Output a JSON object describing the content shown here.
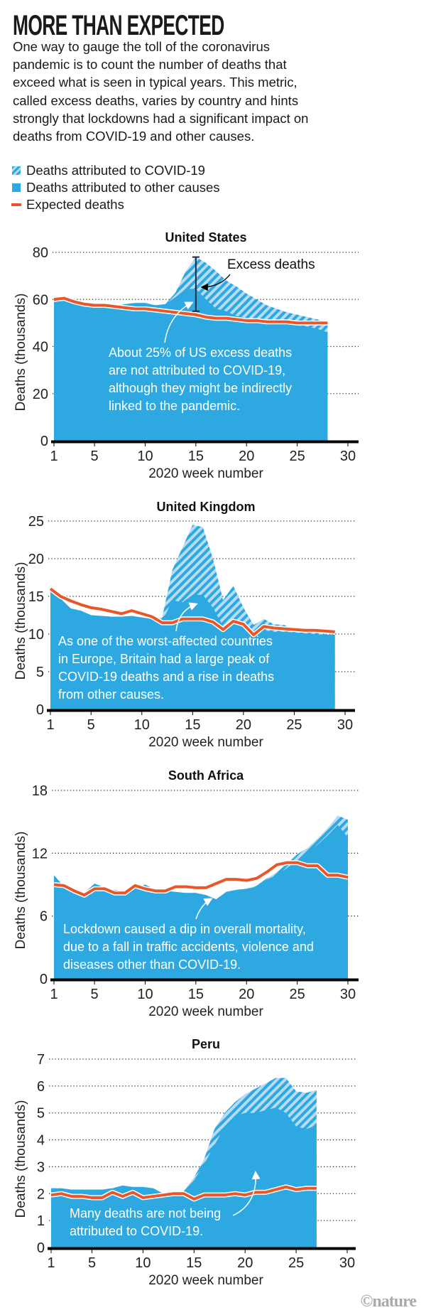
{
  "title": "MORE THAN EXPECTED",
  "intro_lines": [
    "One way to gauge the toll of the coronavirus",
    "pandemic is to count the number of deaths that",
    "exceed what is seen in typical years. This metric,",
    "called excess deaths, varies by country and hints",
    "strongly that lockdowns had a significant impact on",
    "deaths from COVID-19 and other causes."
  ],
  "legend": {
    "covid": "Deaths attributed to COVID-19",
    "other": "Deaths attributed to other causes",
    "expected": "Expected deaths"
  },
  "colors": {
    "other": "#2ea8e0",
    "covid_hatch": "#b5dcf2",
    "expected": "#e8572a"
  },
  "logo": "©nature",
  "chart_data": [
    {
      "type": "area",
      "title": "United States",
      "xlabel": "2020 week number",
      "ylabel": "Deaths (thousands)",
      "xlim": [
        1,
        30
      ],
      "xticks": [
        1,
        5,
        10,
        15,
        20,
        25,
        30
      ],
      "ylim": [
        0,
        80
      ],
      "yticks": [
        0,
        20,
        40,
        60,
        80
      ],
      "grid": true,
      "weeks": [
        1,
        2,
        3,
        4,
        5,
        6,
        7,
        8,
        9,
        10,
        11,
        12,
        13,
        14,
        15,
        16,
        17,
        18,
        19,
        20,
        21,
        22,
        23,
        24,
        25,
        26,
        27,
        28
      ],
      "total": [
        59,
        59.5,
        58,
        57,
        57,
        57,
        57,
        58,
        58.5,
        58.5,
        57.5,
        58,
        63,
        72,
        78,
        75.5,
        72,
        68,
        65.5,
        62.5,
        60,
        57.5,
        56,
        54.5,
        53.5,
        52.5,
        51.5,
        50
      ],
      "other_causes": [
        59,
        59.5,
        58,
        57,
        57,
        57,
        57,
        58,
        58.5,
        58.5,
        57.5,
        58,
        61,
        64.5,
        64.5,
        60,
        56,
        55,
        53,
        52,
        51,
        50.5,
        50,
        49.5,
        49,
        48.5,
        47.5,
        46
      ],
      "expected": [
        60,
        60.5,
        59,
        58,
        57.5,
        57.5,
        57,
        56.5,
        56,
        56,
        55.5,
        55,
        54.5,
        54,
        53.5,
        52.5,
        52,
        52,
        51.5,
        51,
        51,
        50.5,
        50.5,
        50.5,
        50,
        50,
        50,
        50
      ],
      "excess_bracket": {
        "week": 15,
        "from": 55,
        "to": 78,
        "label": "Excess deaths"
      },
      "annotation": [
        "About 25% of US excess deaths",
        "are not attributed to COVID-19,",
        "although they might be indirectly",
        "linked to the pandemic."
      ]
    },
    {
      "type": "area",
      "title": "United Kingdom",
      "xlabel": "2020 week number",
      "ylabel": "Deaths (thousands)",
      "xlim": [
        1,
        30
      ],
      "xticks": [
        1,
        5,
        10,
        15,
        20,
        25,
        30
      ],
      "ylim": [
        0,
        25
      ],
      "yticks": [
        0,
        5,
        10,
        15,
        20,
        25
      ],
      "grid": true,
      "weeks": [
        1,
        2,
        3,
        4,
        5,
        6,
        7,
        8,
        9,
        10,
        11,
        12,
        13,
        14,
        15,
        16,
        17,
        18,
        19,
        20,
        21,
        22,
        23,
        24,
        25,
        26,
        27,
        28,
        29
      ],
      "total": [
        15.7,
        14.7,
        13.4,
        13.1,
        12.5,
        12.4,
        12.3,
        12.3,
        12.4,
        12.2,
        12,
        12.2,
        18.5,
        21.5,
        24.5,
        24.2,
        20,
        14.5,
        16.4,
        13.5,
        11.2,
        12,
        11.3,
        11.2,
        10.6,
        10.3,
        10.2,
        10,
        9.9
      ],
      "other_causes": [
        15.7,
        14.7,
        13.4,
        13.1,
        12.5,
        12.4,
        12.3,
        12.3,
        12.4,
        12.2,
        12,
        11.6,
        14.5,
        14.2,
        15.2,
        15.2,
        13.5,
        11,
        12,
        11.3,
        9.6,
        10.5,
        10.3,
        10.3,
        10.2,
        10.1,
        10,
        9.9,
        9.9
      ],
      "expected": [
        16,
        15,
        14.4,
        13.9,
        13.5,
        13.3,
        13,
        12.7,
        13.1,
        12.7,
        12.3,
        11.5,
        11.5,
        12,
        12,
        12,
        11.6,
        10.6,
        11.7,
        11.3,
        9.9,
        11,
        10.8,
        10.7,
        10.6,
        10.5,
        10.5,
        10.4,
        10.3
      ],
      "annotation": [
        "As one of the worst-affected countries",
        "in Europe, Britain had a large peak of",
        "COVID-19 deaths and a rise in deaths",
        "from other causes."
      ]
    },
    {
      "type": "area",
      "title": "South Africa",
      "xlabel": "2020 week number",
      "ylabel": "Deaths (thousands)",
      "xlim": [
        1,
        30
      ],
      "xticks": [
        1,
        5,
        10,
        15,
        20,
        25,
        30
      ],
      "ylim": [
        0,
        18
      ],
      "yticks": [
        0,
        6,
        12,
        18
      ],
      "grid": true,
      "weeks": [
        1,
        2,
        3,
        4,
        5,
        6,
        7,
        8,
        9,
        10,
        11,
        12,
        13,
        14,
        15,
        16,
        17,
        18,
        19,
        20,
        21,
        22,
        23,
        24,
        25,
        26,
        27,
        28,
        29,
        30
      ],
      "total": [
        9.9,
        8.8,
        8.3,
        8.2,
        9.1,
        8.7,
        8.5,
        8.3,
        8.7,
        9,
        8.5,
        8.4,
        8.3,
        8.2,
        8.2,
        8,
        7.6,
        8.3,
        8.5,
        8.6,
        8.9,
        9.6,
        10.2,
        11,
        11.9,
        12.5,
        13.4,
        14.4,
        15.6,
        15.2
      ],
      "other_causes": [
        9.9,
        8.8,
        8.3,
        8.2,
        9.1,
        8.7,
        8.5,
        8.3,
        8.7,
        9,
        8.5,
        8.4,
        8.3,
        8.2,
        8.2,
        8,
        7.6,
        8.3,
        8.5,
        8.6,
        8.8,
        9.5,
        9.9,
        10.6,
        11.3,
        12,
        12.8,
        13.7,
        14.7,
        13.5
      ],
      "expected": [
        9,
        8.9,
        8.4,
        8,
        8.6,
        8.6,
        8.2,
        8.2,
        8.9,
        8.6,
        8.4,
        8.4,
        8.8,
        8.8,
        8.7,
        8.7,
        9.1,
        9.5,
        9.5,
        9.4,
        9.6,
        10.2,
        10.9,
        11.1,
        11.1,
        10.8,
        10.8,
        9.9,
        9.9,
        9.7
      ],
      "annotation": [
        "Lockdown caused a dip in overall mortality,",
        "due to a fall in traffic accidents, violence and",
        "diseases other than COVID-19."
      ]
    },
    {
      "type": "area",
      "title": "Peru",
      "xlabel": "2020 week number",
      "ylabel": "Deaths (thousands)",
      "xlim": [
        1,
        30
      ],
      "xticks": [
        1,
        5,
        10,
        15,
        20,
        25,
        30
      ],
      "ylim": [
        0,
        7
      ],
      "yticks": [
        0,
        1,
        2,
        3,
        4,
        5,
        6,
        7
      ],
      "grid": true,
      "weeks": [
        1,
        2,
        3,
        4,
        5,
        6,
        7,
        8,
        9,
        10,
        11,
        12,
        13,
        14,
        15,
        16,
        17,
        18,
        19,
        20,
        21,
        22,
        23,
        24,
        25,
        26,
        27
      ],
      "total": [
        2.2,
        2.2,
        2.15,
        2.15,
        2.15,
        2.15,
        2.2,
        2.3,
        2.25,
        2.25,
        2.2,
        2,
        2,
        2.1,
        2.6,
        3.3,
        4.4,
        5,
        5.4,
        5.7,
        5.9,
        6.1,
        6.3,
        6.3,
        5.8,
        5.75,
        5.85
      ],
      "other_causes": [
        2.2,
        2.2,
        2.15,
        2.15,
        2.15,
        2.15,
        2.2,
        2.3,
        2.25,
        2.25,
        2.2,
        2,
        2,
        2.1,
        2.5,
        3.1,
        3.8,
        4.5,
        4.9,
        5,
        5,
        5.1,
        5.2,
        5,
        4.5,
        4.4,
        4.55
      ],
      "expected": [
        1.95,
        2,
        1.9,
        1.9,
        1.85,
        1.85,
        2.05,
        1.9,
        2.05,
        1.85,
        1.9,
        1.95,
        2,
        2,
        1.8,
        1.95,
        1.95,
        1.95,
        2,
        1.95,
        2.05,
        2.05,
        2.15,
        2.25,
        2.15,
        2.2,
        2.2
      ],
      "annotation": [
        "Many deaths are not being",
        "attributed to COVID-19."
      ]
    }
  ]
}
